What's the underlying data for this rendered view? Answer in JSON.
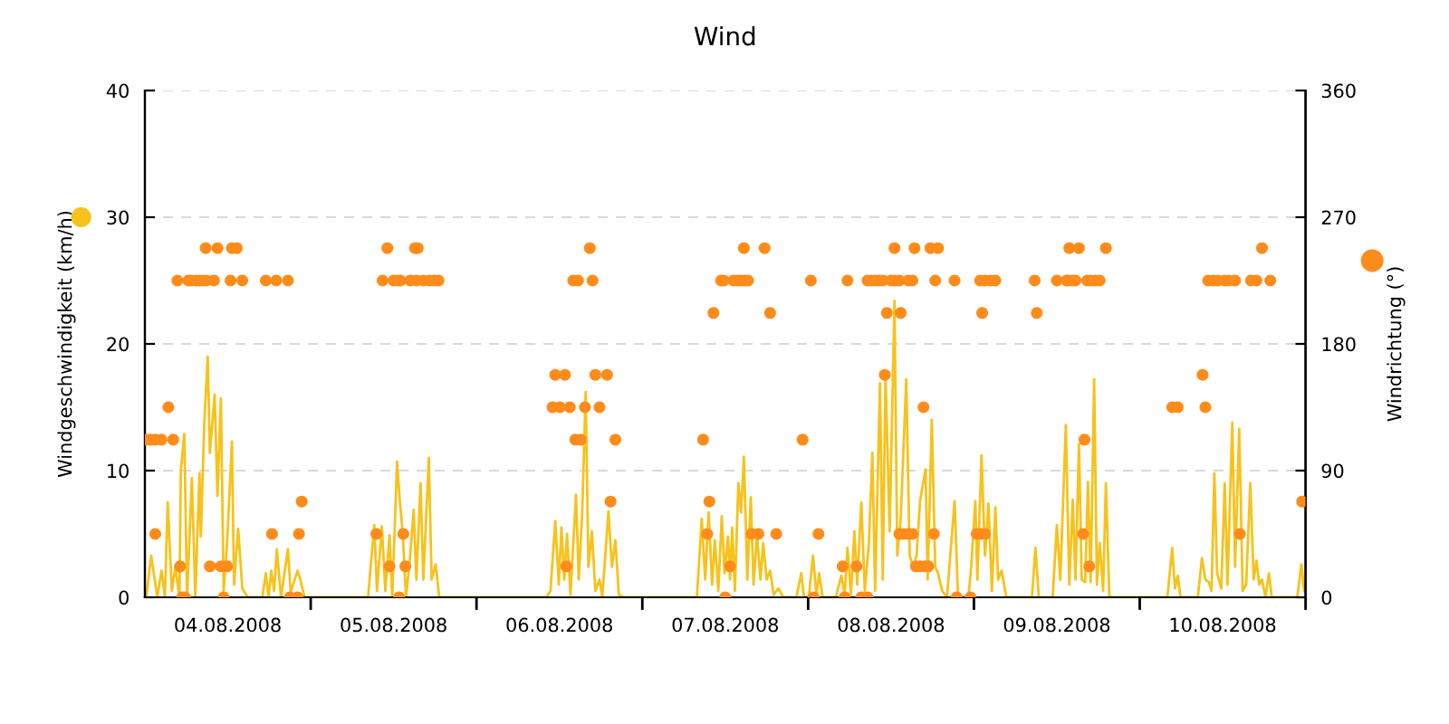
{
  "chart_data": {
    "type": "line",
    "title": "Wind",
    "ylabel": "Windgeschwindigkeit (km/h)",
    "y2label": "Windrichtung (°)",
    "xlim": [
      "2008-08-04T00:00",
      "2008-08-11T00:00"
    ],
    "xticks": [
      {
        "value": "2008-08-05",
        "label": null
      },
      {
        "value": "2008-08-06",
        "label": null
      },
      {
        "value": "2008-08-07",
        "label": null
      },
      {
        "value": "2008-08-08",
        "label": null
      },
      {
        "value": "2008-08-09",
        "label": null
      },
      {
        "value": "2008-08-10",
        "label": null
      },
      {
        "value": "2008-08-11",
        "label": null
      },
      {
        "value": "2008-08-04T12:00",
        "label": "04.08.2008"
      },
      {
        "value": "2008-08-05T12:00",
        "label": "05.08.2008"
      },
      {
        "value": "2008-08-06T12:00",
        "label": "06.08.2008"
      },
      {
        "value": "2008-08-07T12:00",
        "label": "07.08.2008"
      },
      {
        "value": "2008-08-08T12:00",
        "label": "08.08.2008"
      },
      {
        "value": "2008-08-09T12:00",
        "label": "09.08.2008"
      },
      {
        "value": "2008-08-10T12:00",
        "label": "10.08.2008"
      }
    ],
    "ylim": [
      0,
      40
    ],
    "yticks": [
      0,
      10,
      20,
      30,
      40
    ],
    "y2lim": [
      0,
      360
    ],
    "y2ticks": [
      0,
      90,
      180,
      270,
      360
    ],
    "grid": "y",
    "series": [
      {
        "color": "#f7c21b",
        "marker": "none",
        "line_style": "solid",
        "x": [
          "2008-08-04T00:12",
          "2008-08-04T00:54",
          "2008-08-04T01:48",
          "2008-08-04T02:24",
          "2008-08-04T02:54",
          "2008-08-04T03:18",
          "2008-08-04T03:54",
          "2008-08-04T04:24",
          "2008-08-04T05:00",
          "2008-08-04T05:12",
          "2008-08-04T05:42",
          "2008-08-04T06:06",
          "2008-08-04T06:48",
          "2008-08-04T07:18",
          "2008-08-04T07:54",
          "2008-08-04T08:06",
          "2008-08-04T08:36",
          "2008-08-04T09:06",
          "2008-08-04T09:24",
          "2008-08-04T10:06",
          "2008-08-04T10:30",
          "2008-08-04T11:00",
          "2008-08-04T11:24",
          "2008-08-04T11:54",
          "2008-08-04T12:36",
          "2008-08-04T12:54",
          "2008-08-04T13:30",
          "2008-08-04T14:06",
          "2008-08-04T14:54",
          "2008-08-04T17:00",
          "2008-08-04T17:30",
          "2008-08-04T17:54",
          "2008-08-04T18:18",
          "2008-08-04T18:42",
          "2008-08-04T19:06",
          "2008-08-04T19:42",
          "2008-08-04T20:42",
          "2008-08-04T21:06",
          "2008-08-04T22:06",
          "2008-08-04T22:30",
          "2008-08-04T23:06",
          "2008-08-05T08:18",
          "2008-08-05T09:12",
          "2008-08-05T09:36",
          "2008-08-05T10:18",
          "2008-08-05T10:48",
          "2008-08-05T11:24",
          "2008-08-05T11:48",
          "2008-08-05T12:30",
          "2008-08-05T12:54",
          "2008-08-05T13:18",
          "2008-08-05T13:48",
          "2008-08-05T14:24",
          "2008-08-05T14:54",
          "2008-08-05T15:18",
          "2008-08-05T15:54",
          "2008-08-05T16:18",
          "2008-08-05T17:06",
          "2008-08-05T17:30",
          "2008-08-05T18:06",
          "2008-08-05T18:36",
          "2008-08-05T19:42",
          "2008-08-06T10:06",
          "2008-08-06T10:42",
          "2008-08-06T11:24",
          "2008-08-06T11:54",
          "2008-08-06T12:18",
          "2008-08-06T12:42",
          "2008-08-06T13:06",
          "2008-08-06T13:36",
          "2008-08-06T14:24",
          "2008-08-06T14:48",
          "2008-08-06T15:18",
          "2008-08-06T15:48",
          "2008-08-06T16:12",
          "2008-08-06T16:42",
          "2008-08-06T17:12",
          "2008-08-06T17:48",
          "2008-08-06T18:12",
          "2008-08-06T19:06",
          "2008-08-06T19:36",
          "2008-08-06T20:06",
          "2008-08-06T20:36",
          "2008-08-06T21:24",
          "2008-08-07T07:54",
          "2008-08-07T08:36",
          "2008-08-07T09:06",
          "2008-08-07T09:36",
          "2008-08-07T10:06",
          "2008-08-07T10:30",
          "2008-08-07T11:00",
          "2008-08-07T11:30",
          "2008-08-07T11:54",
          "2008-08-07T12:24",
          "2008-08-07T12:42",
          "2008-08-07T13:00",
          "2008-08-07T13:24",
          "2008-08-07T13:54",
          "2008-08-07T14:18",
          "2008-08-07T14:42",
          "2008-08-07T15:12",
          "2008-08-07T15:42",
          "2008-08-07T16:06",
          "2008-08-07T16:36",
          "2008-08-07T17:06",
          "2008-08-07T17:30",
          "2008-08-07T18:00",
          "2008-08-07T18:30",
          "2008-08-07T19:00",
          "2008-08-07T19:42",
          "2008-08-07T20:24",
          "2008-08-07T22:18",
          "2008-08-07T23:00",
          "2008-08-07T23:24",
          "2008-08-08T00:06",
          "2008-08-08T00:42",
          "2008-08-08T01:12",
          "2008-08-08T01:36",
          "2008-08-08T02:06",
          "2008-08-08T04:00",
          "2008-08-08T04:48",
          "2008-08-08T05:18",
          "2008-08-08T05:42",
          "2008-08-08T06:12",
          "2008-08-08T06:42",
          "2008-08-08T07:06",
          "2008-08-08T07:42",
          "2008-08-08T08:12",
          "2008-08-08T08:48",
          "2008-08-08T09:18",
          "2008-08-08T09:42",
          "2008-08-08T10:24",
          "2008-08-08T10:48",
          "2008-08-08T11:12",
          "2008-08-08T11:48",
          "2008-08-08T12:30",
          "2008-08-08T12:54",
          "2008-08-08T13:24",
          "2008-08-08T14:12",
          "2008-08-08T14:42",
          "2008-08-08T15:12",
          "2008-08-08T15:42",
          "2008-08-08T16:12",
          "2008-08-08T17:00",
          "2008-08-08T17:18",
          "2008-08-08T17:54",
          "2008-08-08T18:24",
          "2008-08-08T18:48",
          "2008-08-08T19:24",
          "2008-08-08T20:06",
          "2008-08-08T21:12",
          "2008-08-08T21:42",
          "2008-08-08T23:12",
          "2008-08-08T23:36",
          "2008-08-09T00:12",
          "2008-08-09T00:30",
          "2008-08-09T01:06",
          "2008-08-09T01:36",
          "2008-08-09T02:06",
          "2008-08-09T02:36",
          "2008-08-09T03:06",
          "2008-08-09T03:30",
          "2008-08-09T04:00",
          "2008-08-09T04:42",
          "2008-08-09T08:24",
          "2008-08-09T08:54",
          "2008-08-09T09:24",
          "2008-08-09T11:24",
          "2008-08-09T12:00",
          "2008-08-09T12:30",
          "2008-08-09T13:18",
          "2008-08-09T13:48",
          "2008-08-09T14:18",
          "2008-08-09T14:42",
          "2008-08-09T15:12",
          "2008-08-09T15:36",
          "2008-08-09T16:06",
          "2008-08-09T16:30",
          "2008-08-09T16:54",
          "2008-08-09T17:24",
          "2008-08-09T17:48",
          "2008-08-09T18:12",
          "2008-08-09T18:42",
          "2008-08-09T19:06",
          "2008-08-09T19:36",
          "2008-08-09T20:12",
          "2008-08-10T04:00",
          "2008-08-10T04:42",
          "2008-08-10T05:06",
          "2008-08-10T05:30",
          "2008-08-10T05:54",
          "2008-08-10T08:24",
          "2008-08-10T09:00",
          "2008-08-10T09:30",
          "2008-08-10T10:00",
          "2008-08-10T10:24",
          "2008-08-10T10:48",
          "2008-08-10T11:12",
          "2008-08-10T11:48",
          "2008-08-10T12:18",
          "2008-08-10T12:42",
          "2008-08-10T13:24",
          "2008-08-10T13:48",
          "2008-08-10T14:24",
          "2008-08-10T14:54",
          "2008-08-10T15:24",
          "2008-08-10T16:00",
          "2008-08-10T16:30",
          "2008-08-10T16:54",
          "2008-08-10T17:18",
          "2008-08-10T17:42",
          "2008-08-10T18:12",
          "2008-08-10T18:42",
          "2008-08-10T19:06",
          "2008-08-10T22:48",
          "2008-08-10T23:24",
          "2008-08-10T23:48"
        ],
        "values": [
          0,
          3.3,
          0,
          2.1,
          0,
          7.5,
          0.5,
          2.4,
          0,
          10,
          12.9,
          0,
          9.4,
          0,
          9.8,
          4.8,
          13.8,
          19,
          11.4,
          16,
          8,
          15.7,
          0.5,
          4.3,
          12.3,
          1,
          5.4,
          0.7,
          0,
          0,
          1.9,
          0,
          2.1,
          0.5,
          3.8,
          0,
          3.8,
          0.4,
          2.1,
          1.4,
          0,
          0,
          5.7,
          0.5,
          5.6,
          0.5,
          4.9,
          0,
          10.7,
          7.6,
          5.2,
          0,
          3.3,
          6.9,
          1.4,
          9,
          1.4,
          11,
          1.4,
          2.6,
          0,
          0,
          0,
          0.5,
          6,
          1,
          5.5,
          1.4,
          5,
          0.2,
          8.1,
          1.4,
          6.7,
          16.2,
          2.4,
          5.2,
          0.5,
          1.4,
          0,
          6.8,
          2.4,
          4.5,
          0.2,
          0,
          0,
          6.2,
          1.4,
          6.7,
          1,
          4.5,
          0.5,
          6.4,
          1.9,
          4.8,
          1.4,
          5.5,
          0.5,
          9,
          6.7,
          11.1,
          1.4,
          7.9,
          1,
          5,
          1.4,
          4.3,
          1.4,
          2.1,
          0.2,
          0.7,
          0,
          0,
          1.9,
          0,
          0,
          3.3,
          0.2,
          1.9,
          0,
          0,
          1.7,
          0.2,
          3.9,
          0.2,
          5.2,
          1,
          7.5,
          0.5,
          4.3,
          11.4,
          0.5,
          16.9,
          1.4,
          17.6,
          5.2,
          23.4,
          3.3,
          6.2,
          17.2,
          3.3,
          2.4,
          3.3,
          7.6,
          10.1,
          1.4,
          14,
          2.4,
          1.9,
          0.5,
          0,
          7.6,
          0,
          0,
          2.4,
          7.6,
          1.4,
          11.2,
          3.3,
          7.4,
          0.5,
          7.1,
          1.4,
          2.1,
          0,
          0,
          3.9,
          0,
          0,
          5.7,
          1.4,
          13.6,
          1,
          7.7,
          1.4,
          12.1,
          1.4,
          1.2,
          9.1,
          1.2,
          17.2,
          1,
          4.3,
          0.5,
          9,
          0.1,
          0,
          0,
          3.9,
          0.7,
          1.7,
          0,
          0,
          3.1,
          1.4,
          1.2,
          0.5,
          9.8,
          1.9,
          0.7,
          9,
          1,
          13.8,
          2.4,
          13.3,
          0.5,
          1,
          9,
          1.4,
          2.9,
          1,
          1.4,
          0,
          1.9,
          0,
          0,
          2.6,
          0.5
        ]
      },
      {
        "type": "scatter",
        "axis": "y2",
        "color": "#ff8c1a",
        "marker": "circle",
        "x": [
          "2008-08-04T00:12",
          "2008-08-04T00:48",
          "2008-08-04T01:30",
          "2008-08-04T01:30",
          "2008-08-04T02:24",
          "2008-08-04T03:24",
          "2008-08-04T04:06",
          "2008-08-04T04:42",
          "2008-08-04T05:06",
          "2008-08-04T05:24",
          "2008-08-04T05:48",
          "2008-08-04T06:18",
          "2008-08-04T06:42",
          "2008-08-04T07:24",
          "2008-08-04T07:54",
          "2008-08-04T08:24",
          "2008-08-04T08:48",
          "2008-08-04T08:54",
          "2008-08-04T09:24",
          "2008-08-04T10:00",
          "2008-08-04T10:30",
          "2008-08-04T11:00",
          "2008-08-04T11:24",
          "2008-08-04T11:54",
          "2008-08-04T12:24",
          "2008-08-04T12:36",
          "2008-08-04T13:18",
          "2008-08-04T14:06",
          "2008-08-04T17:30",
          "2008-08-04T18:24",
          "2008-08-04T19:00",
          "2008-08-04T20:42",
          "2008-08-04T21:00",
          "2008-08-04T22:06",
          "2008-08-04T22:18",
          "2008-08-04T22:42",
          "2008-08-05T09:30",
          "2008-08-05T10:24",
          "2008-08-05T11:06",
          "2008-08-05T11:24",
          "2008-08-05T12:00",
          "2008-08-05T12:30",
          "2008-08-05T12:48",
          "2008-08-05T13:00",
          "2008-08-05T13:24",
          "2008-08-05T13:42",
          "2008-08-05T14:24",
          "2008-08-05T15:06",
          "2008-08-05T15:18",
          "2008-08-05T15:30",
          "2008-08-05T16:18",
          "2008-08-05T17:12",
          "2008-08-05T17:54",
          "2008-08-05T18:30",
          "2008-08-06T11:00",
          "2008-08-06T11:24",
          "2008-08-06T12:06",
          "2008-08-06T12:48",
          "2008-08-06T13:00",
          "2008-08-06T13:30",
          "2008-08-06T14:00",
          "2008-08-06T14:18",
          "2008-08-06T14:42",
          "2008-08-06T15:06",
          "2008-08-06T15:42",
          "2008-08-06T16:24",
          "2008-08-06T16:48",
          "2008-08-06T17:12",
          "2008-08-06T17:48",
          "2008-08-06T18:54",
          "2008-08-06T19:24",
          "2008-08-06T20:06",
          "2008-08-07T08:48",
          "2008-08-07T09:24",
          "2008-08-07T09:42",
          "2008-08-07T10:18",
          "2008-08-07T11:24",
          "2008-08-07T11:48",
          "2008-08-07T12:00",
          "2008-08-07T12:42",
          "2008-08-07T13:12",
          "2008-08-07T13:48",
          "2008-08-07T14:18",
          "2008-08-07T14:42",
          "2008-08-07T14:54",
          "2008-08-07T15:18",
          "2008-08-07T15:48",
          "2008-08-07T16:48",
          "2008-08-07T17:42",
          "2008-08-07T18:30",
          "2008-08-07T19:24",
          "2008-08-07T23:12",
          "2008-08-08T00:24",
          "2008-08-08T00:48",
          "2008-08-08T01:30",
          "2008-08-08T05:00",
          "2008-08-08T05:18",
          "2008-08-08T05:42",
          "2008-08-08T07:00",
          "2008-08-08T07:42",
          "2008-08-08T08:36",
          "2008-08-08T08:36",
          "2008-08-08T09:06",
          "2008-08-08T09:42",
          "2008-08-08T10:18",
          "2008-08-08T10:48",
          "2008-08-08T11:06",
          "2008-08-08T11:24",
          "2008-08-08T12:00",
          "2008-08-08T12:30",
          "2008-08-08T12:30",
          "2008-08-08T13:12",
          "2008-08-08T13:12",
          "2008-08-08T13:24",
          "2008-08-08T13:48",
          "2008-08-08T14:30",
          "2008-08-08T14:30",
          "2008-08-08T15:06",
          "2008-08-08T15:06",
          "2008-08-08T15:24",
          "2008-08-08T15:36",
          "2008-08-08T16:12",
          "2008-08-08T16:42",
          "2008-08-08T16:54",
          "2008-08-08T17:24",
          "2008-08-08T17:42",
          "2008-08-08T18:12",
          "2008-08-08T18:24",
          "2008-08-08T18:48",
          "2008-08-08T21:12",
          "2008-08-08T21:30",
          "2008-08-08T23:30",
          "2008-08-09T00:24",
          "2008-08-09T00:54",
          "2008-08-09T01:00",
          "2008-08-09T01:12",
          "2008-08-09T01:36",
          "2008-08-09T01:36",
          "2008-08-09T02:24",
          "2008-08-09T03:06",
          "2008-08-09T08:48",
          "2008-08-09T09:06",
          "2008-08-09T12:00",
          "2008-08-09T13:24",
          "2008-08-09T13:36",
          "2008-08-09T13:48",
          "2008-08-09T14:12",
          "2008-08-09T14:42",
          "2008-08-09T15:12",
          "2008-08-09T15:48",
          "2008-08-09T16:00",
          "2008-08-09T16:24",
          "2008-08-09T16:42",
          "2008-08-09T16:54",
          "2008-08-09T17:36",
          "2008-08-09T18:12",
          "2008-08-09T19:06",
          "2008-08-10T04:42",
          "2008-08-10T05:30",
          "2008-08-10T09:06",
          "2008-08-10T09:30",
          "2008-08-10T09:54",
          "2008-08-10T10:36",
          "2008-08-10T11:18",
          "2008-08-10T12:18",
          "2008-08-10T12:54",
          "2008-08-10T13:48",
          "2008-08-10T14:30",
          "2008-08-10T16:06",
          "2008-08-10T16:54",
          "2008-08-10T17:42",
          "2008-08-10T18:54",
          "2008-08-10T23:30"
        ],
        "values": [
          112,
          112,
          112,
          45,
          112,
          135,
          112,
          225,
          22,
          0,
          0,
          225,
          225,
          225,
          225,
          225,
          248,
          225,
          22,
          225,
          248,
          22,
          0,
          22,
          225,
          248,
          248,
          225,
          225,
          45,
          225,
          225,
          0,
          0,
          45,
          68,
          45,
          225,
          248,
          22,
          225,
          225,
          0,
          225,
          45,
          22,
          225,
          248,
          225,
          248,
          225,
          225,
          225,
          225,
          135,
          158,
          135,
          158,
          22,
          135,
          225,
          112,
          225,
          112,
          135,
          248,
          225,
          158,
          135,
          158,
          68,
          112,
          112,
          45,
          68,
          202,
          225,
          225,
          0,
          22,
          225,
          225,
          225,
          248,
          225,
          225,
          45,
          45,
          248,
          202,
          45,
          112,
          225,
          0,
          45,
          22,
          0,
          225,
          22,
          0,
          0,
          225,
          225,
          225,
          225,
          225,
          158,
          202,
          225,
          225,
          248,
          225,
          45,
          202,
          45,
          225,
          45,
          225,
          45,
          248,
          22,
          22,
          135,
          22,
          22,
          248,
          45,
          225,
          248,
          225,
          0,
          0,
          45,
          225,
          45,
          202,
          225,
          45,
          225,
          225,
          225,
          202,
          225,
          225,
          225,
          248,
          225,
          225,
          248,
          45,
          112,
          225,
          22,
          225,
          225,
          225,
          248,
          135,
          135,
          158,
          135,
          225,
          225,
          225,
          225,
          225,
          225,
          45,
          225,
          225,
          248,
          225,
          68
        ]
      }
    ]
  }
}
